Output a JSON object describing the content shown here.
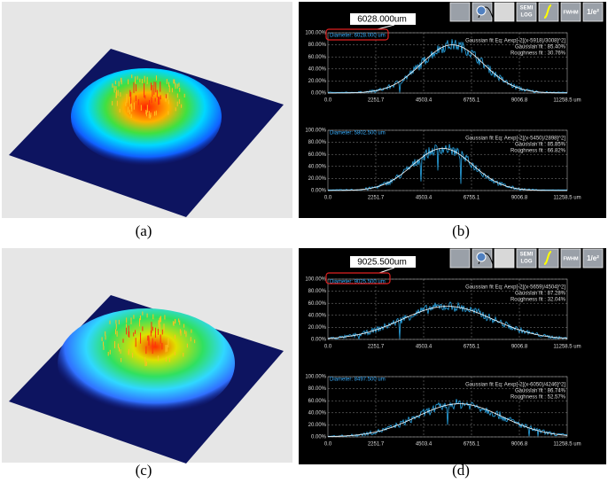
{
  "labels": [
    "(a)",
    "(b)",
    "(c)",
    "(d)"
  ],
  "toolbar": [
    "SEMI",
    "LOG",
    "FWHM",
    "1/e²"
  ],
  "profilers": [
    {
      "annotation": "6028.000um",
      "plots": [
        {
          "diameter": "Diameter: 6028.000 um",
          "fit_eq": "Gaussian fit Eq: Aexp[-2[(x-5918)/3008]^2]",
          "gaussian_fit": "Gaussian fit : 85.40%",
          "roughness": "Roughness fit : 30.76%"
        },
        {
          "diameter": "Diameter: 5802.500 um",
          "fit_eq": "Gaussian fit Eq: Aexp[-2[(x-5450)/2898]^2]",
          "gaussian_fit": "Gaussian fit : 85.85%",
          "roughness": "Roughness fit : 66.82%"
        }
      ]
    },
    {
      "annotation": "9025.500um",
      "plots": [
        {
          "diameter": "Diameter: 9025.500 um",
          "fit_eq": "Gaussian fit Eq: Aexp[-2[(x-5659)/4504]^2]",
          "gaussian_fit": "Gaussian fit : 87.28%",
          "roughness": "Roughness fit : 32.04%"
        },
        {
          "diameter": "Diameter: 8497.500 um",
          "fit_eq": "Gaussian fit Eq: Aexp[-2[(x-6050)/4246]^2]",
          "gaussian_fit": "Gaussian fit : 86.74%",
          "roughness": "Roughness fit : 52.57%"
        }
      ]
    }
  ],
  "yticks": [
    "100.00%",
    "80.00%",
    "60.00%",
    "40.00%",
    "20.00%",
    "0.00%"
  ],
  "xticks": [
    "0.0",
    "2251.7",
    "4503.4",
    "6755.1",
    "9006.8",
    "11258.5 um"
  ]
}
